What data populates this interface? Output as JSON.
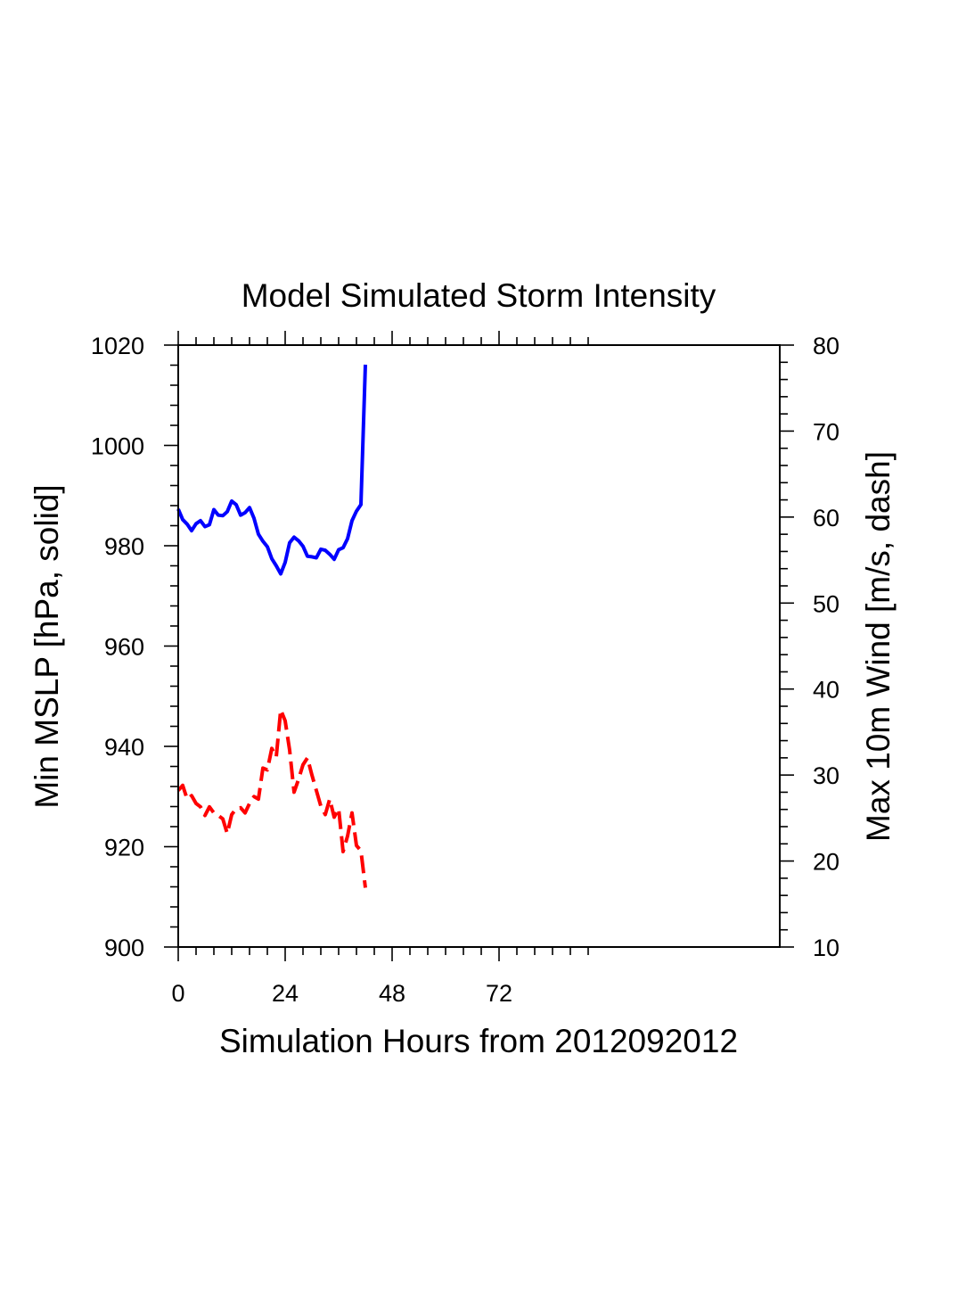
{
  "chart_data": {
    "type": "line",
    "title": "Model Simulated Storm Intensity",
    "xlabel": "Simulation Hours from 2012092012",
    "ylabel": "Min MSLP  [hPa, solid]",
    "y2label": "Max 10m Wind  [m/s, dash]",
    "xlim": [
      0,
      135
    ],
    "ylim": [
      900,
      1020
    ],
    "y2lim": [
      10,
      80
    ],
    "x_ticks": [
      0,
      24,
      48,
      72
    ],
    "x_tick_labels": [
      "0",
      "24",
      "48",
      "72"
    ],
    "y_ticks": [
      900,
      920,
      940,
      960,
      980,
      1000,
      1020
    ],
    "y_tick_labels": [
      "900",
      "920",
      "940",
      "960",
      "980",
      "1000",
      "1020"
    ],
    "y2_ticks": [
      10,
      20,
      30,
      40,
      50,
      60,
      70,
      80
    ],
    "y2_tick_labels": [
      "10",
      "20",
      "30",
      "40",
      "50",
      "60",
      "70",
      "80"
    ],
    "series": [
      {
        "name": "Min MSLP",
        "axis": "left",
        "style": "solid",
        "color": "#0000ff",
        "x": [
          0,
          1,
          2,
          3,
          4,
          5,
          6,
          7,
          8,
          9,
          10,
          11,
          12,
          13,
          14,
          15,
          16,
          17,
          18,
          19,
          20,
          21,
          22,
          23,
          24,
          25,
          26,
          27,
          28,
          29,
          30,
          31,
          32,
          33,
          34,
          35,
          36,
          37,
          38,
          39,
          40,
          41,
          42
        ],
        "values": [
          987.3,
          985.2,
          984.3,
          983.0,
          984.4,
          985.0,
          983.8,
          984.2,
          987.2,
          986.1,
          986.0,
          986.8,
          988.9,
          988.2,
          986.1,
          986.6,
          987.6,
          985.5,
          982.3,
          980.9,
          979.8,
          977.4,
          976.0,
          974.4,
          976.7,
          980.6,
          981.7,
          981.0,
          979.9,
          977.9,
          977.8,
          977.6,
          979.3,
          979.1,
          978.3,
          977.3,
          979.2,
          979.6,
          981.4,
          985.0,
          986.9,
          988.2,
          1016.1
        ]
      },
      {
        "name": "Max 10m Wind",
        "axis": "right",
        "style": "dash",
        "color": "#ff0000",
        "x": [
          0,
          1,
          2,
          3,
          4,
          5,
          6,
          7,
          8,
          9,
          10,
          11,
          12,
          13,
          14,
          15,
          16,
          17,
          18,
          19,
          20,
          21,
          22,
          23,
          24,
          25,
          26,
          27,
          28,
          29,
          30,
          31,
          32,
          33,
          34,
          35,
          36,
          37,
          38,
          39,
          40,
          41,
          42
        ],
        "values": [
          28.2,
          28.8,
          27.2,
          27.6,
          26.7,
          26.3,
          25.3,
          26.3,
          25.6,
          25.3,
          24.9,
          23.2,
          25.4,
          26.1,
          26.2,
          25.6,
          26.7,
          27.5,
          27.2,
          30.8,
          30.6,
          33.1,
          32.1,
          37.6,
          36.3,
          32.9,
          28.0,
          29.5,
          31.2,
          32.0,
          30.0,
          28.2,
          26.4,
          25.4,
          27.2,
          25.1,
          26.1,
          21.1,
          22.9,
          25.6,
          21.8,
          21.2,
          16.9
        ]
      }
    ]
  }
}
